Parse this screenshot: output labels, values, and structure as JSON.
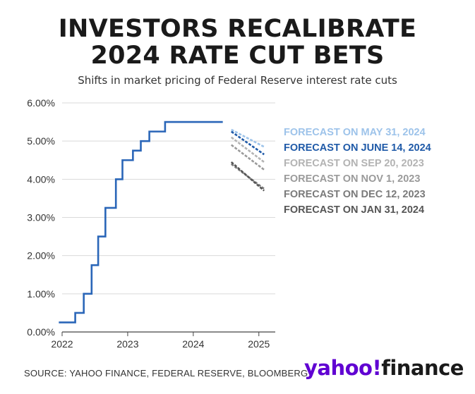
{
  "header": {
    "title_line1": "INVESTORS RECALIBRATE",
    "title_line2": "2024 RATE CUT BETS",
    "subtitle": "Shifts in market pricing of Federal Reserve interest rate cuts"
  },
  "footer": {
    "source": "SOURCE: YAHOO FINANCE, FEDERAL RESERVE, BLOOMBERG",
    "logo_yahoo": "yahoo!",
    "logo_finance": "finance"
  },
  "chart_data": {
    "type": "line",
    "title": "INVESTORS RECALIBRATE 2024 RATE CUT BETS",
    "subtitle": "Shifts in market pricing of Federal Reserve interest rate cuts",
    "xlabel": "",
    "ylabel": "",
    "xlim": [
      2022.0,
      2025.25
    ],
    "ylim": [
      0,
      6
    ],
    "x_ticks": [
      2022,
      2023,
      2024,
      2025
    ],
    "x_tick_labels": [
      "2022",
      "2023",
      "2024",
      "2025"
    ],
    "y_ticks": [
      0,
      1,
      2,
      3,
      4,
      5,
      6
    ],
    "y_tick_labels": [
      "0.00%",
      "1.00%",
      "2.00%",
      "3.00%",
      "4.00%",
      "5.00%",
      "6.00%"
    ],
    "grid": "horizontal",
    "legend": "right",
    "actual": {
      "color": "#2a66b8",
      "step": true,
      "x": [
        2021.95,
        2022.2,
        2022.33,
        2022.45,
        2022.55,
        2022.66,
        2022.82,
        2022.92,
        2023.08,
        2023.2,
        2023.33,
        2023.57,
        2024.45
      ],
      "y": [
        0.25,
        0.5,
        1.0,
        1.75,
        2.5,
        3.25,
        4.0,
        4.5,
        4.75,
        5.0,
        5.25,
        5.5,
        5.5
      ]
    },
    "forecasts": [
      {
        "name": "FORECAST ON MAY 31, 2024",
        "color": "#9dc3ea",
        "x": [
          2024.58,
          2025.08
        ],
        "y": [
          5.3,
          4.85
        ]
      },
      {
        "name": "FORECAST ON JUNE 14, 2024",
        "color": "#1f5aa8",
        "x": [
          2024.58,
          2025.08
        ],
        "y": [
          5.25,
          4.65
        ]
      },
      {
        "name": "FORECAST ON SEP 20, 2023",
        "color": "#b3b3b3",
        "x": [
          2024.58,
          2025.08
        ],
        "y": [
          5.1,
          4.45
        ]
      },
      {
        "name": "FORECAST ON NOV 1, 2023",
        "color": "#9a9a9a",
        "x": [
          2024.58,
          2025.08
        ],
        "y": [
          4.9,
          4.25
        ]
      },
      {
        "name": "FORECAST ON DEC 12, 2023",
        "color": "#7a7a7a",
        "x": [
          2024.58,
          2025.08
        ],
        "y": [
          4.4,
          3.75
        ]
      },
      {
        "name": "FORECAST ON JAN 31, 2024",
        "color": "#555555",
        "x": [
          2024.58,
          2025.08
        ],
        "y": [
          4.45,
          3.7
        ]
      }
    ]
  }
}
